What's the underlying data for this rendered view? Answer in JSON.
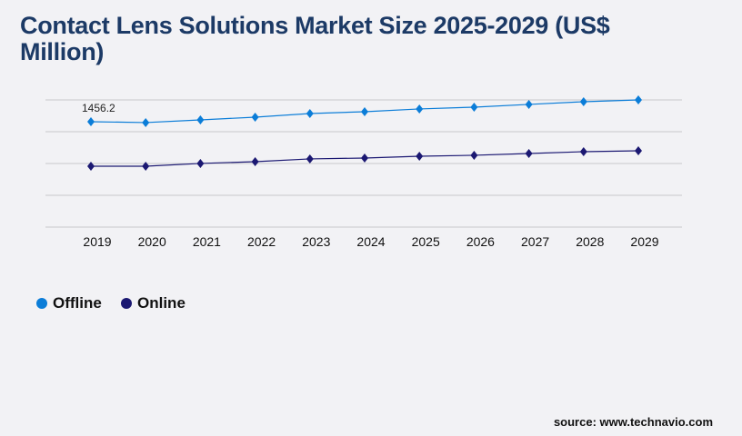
{
  "title": "Contact Lens Solutions Market Size 2025-2029 (US$ Million)",
  "source": "source: www.technavio.com",
  "chart_data": {
    "type": "line",
    "title": "Contact Lens Solutions Market Size 2025-2029 (US$ Million)",
    "categories": [
      "2019",
      "2020",
      "2021",
      "2022",
      "2023",
      "2024",
      "2025",
      "2026",
      "2027",
      "2028",
      "2029"
    ],
    "series": [
      {
        "name": "Offline",
        "color": "#0b7dd8",
        "values": [
          1456.2,
          1444,
          1481,
          1519,
          1569,
          1594,
          1632,
          1657,
          1695,
          1732,
          1757
        ]
      },
      {
        "name": "Online",
        "color": "#1b1872",
        "values": [
          841,
          841,
          879,
          904,
          942,
          954,
          979,
          992,
          1017,
          1042,
          1054
        ]
      }
    ],
    "annotations": [
      {
        "series": "Offline",
        "category": "2019",
        "text": "1456.2"
      }
    ],
    "ylim": [
      0,
      1757
    ],
    "grid": true,
    "legend": "bottom-left",
    "xlabel": "",
    "ylabel": ""
  }
}
